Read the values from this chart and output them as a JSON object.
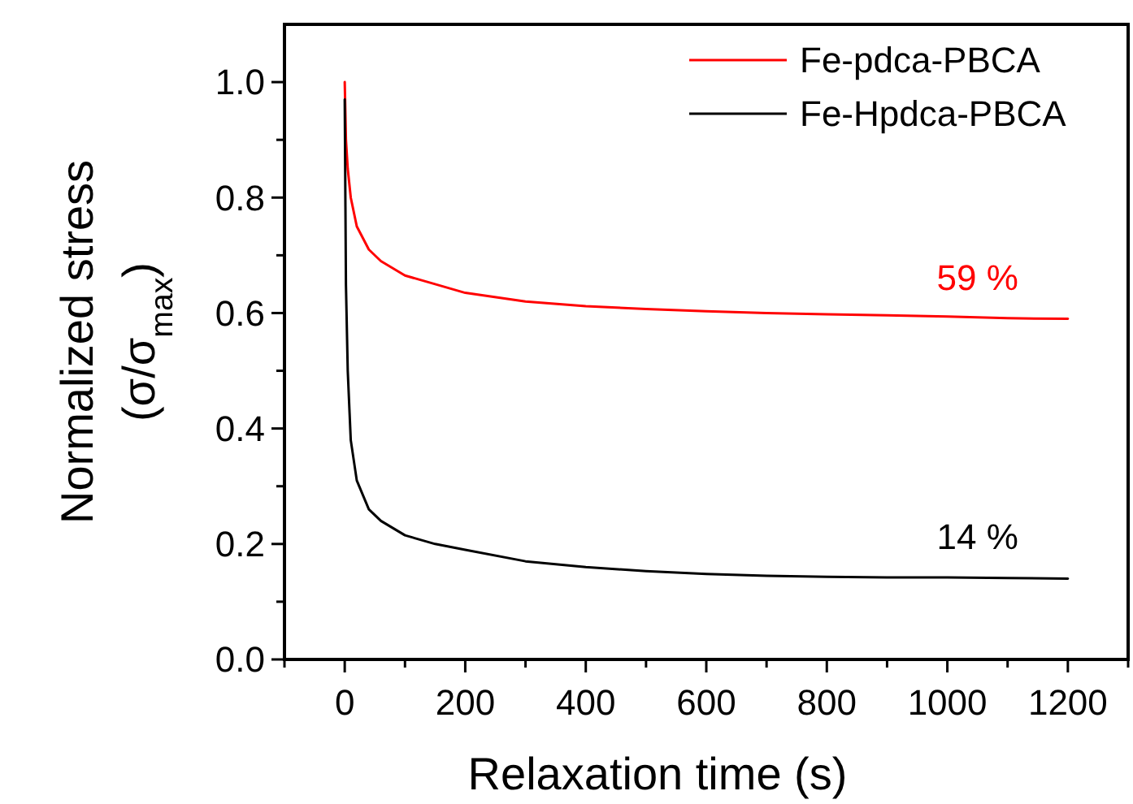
{
  "chart_data": {
    "type": "line",
    "xlabel": "Relaxation time (s)",
    "ylabel": "Normalized stress\n(σ/σ$_{max}$)",
    "xlim": [
      -100,
      1300
    ],
    "xticks": [
      {
        "value": -100,
        "label": null
      },
      0,
      {
        "value": 100,
        "label": null
      },
      200,
      {
        "value": 300,
        "label": null
      },
      400,
      {
        "value": 500,
        "label": null
      },
      600,
      {
        "value": 700,
        "label": null
      },
      800,
      {
        "value": 900,
        "label": null
      },
      1000,
      {
        "value": 1100,
        "label": null
      },
      1200,
      {
        "value": 1300,
        "label": null
      }
    ],
    "ylim": [
      0,
      1.1
    ],
    "yticks": [
      "0.0",
      {
        "value": 0.1,
        "label": null
      },
      0.2,
      {
        "value": 0.3,
        "label": null
      },
      0.4,
      {
        "value": 0.5,
        "label": null
      },
      0.6,
      {
        "value": 0.7,
        "label": null
      },
      0.8,
      {
        "value": 0.9,
        "label": null
      },
      "1.0"
    ],
    "x": [
      0,
      2,
      5,
      10,
      20,
      40,
      60,
      100,
      150,
      200,
      300,
      400,
      500,
      600,
      700,
      800,
      900,
      1000,
      1100,
      1200
    ],
    "series": [
      {
        "name": "Fe-pdca-PBCA",
        "color": "#ff0000",
        "values": [
          1.0,
          0.9,
          0.85,
          0.8,
          0.75,
          0.71,
          0.69,
          0.665,
          0.65,
          0.635,
          0.62,
          0.612,
          0.607,
          0.603,
          0.6,
          0.598,
          0.596,
          0.594,
          0.591,
          0.59
        ]
      },
      {
        "name": "Fe-Hpdca-PBCA",
        "color": "#000000",
        "values": [
          0.97,
          0.65,
          0.5,
          0.38,
          0.31,
          0.26,
          0.24,
          0.215,
          0.2,
          0.19,
          0.17,
          0.16,
          0.153,
          0.148,
          0.145,
          0.143,
          0.142,
          0.142,
          0.141,
          0.14
        ]
      }
    ],
    "annotations": [
      {
        "text": "59 %",
        "x": 1050,
        "y": 0.59
      },
      {
        "text": "14 %",
        "x": 1050,
        "y": 0.14
      }
    ],
    "legend": "top right",
    "marker": "none",
    "line_style": "solid",
    "grid": false
  }
}
